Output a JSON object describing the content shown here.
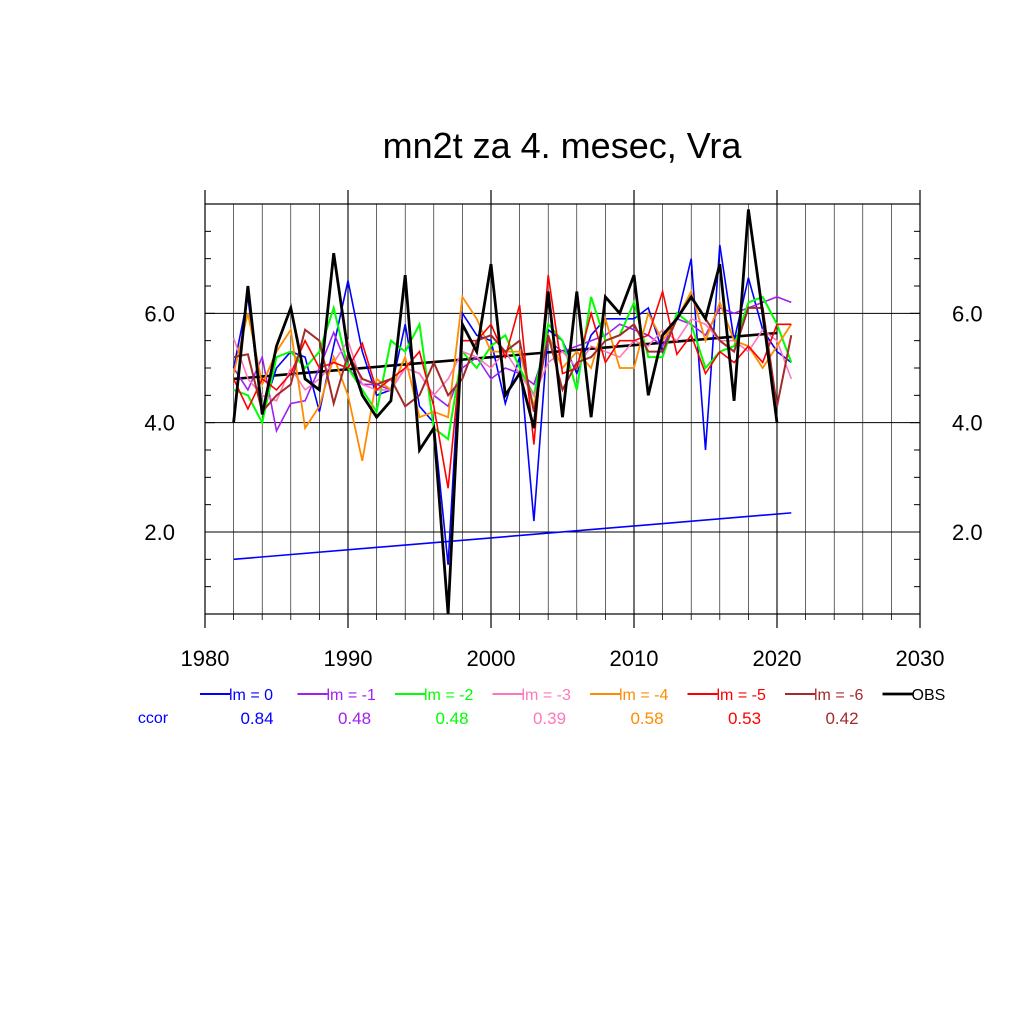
{
  "chart_data": {
    "type": "line",
    "title": "mn2t za 4. mesec, Vra",
    "xlim": [
      1980,
      2030
    ],
    "ylim": [
      0.5,
      8.0
    ],
    "x_ticks": [
      1980,
      1990,
      2000,
      2010,
      2020,
      2030
    ],
    "x_tick_labels": [
      "1980",
      "1990",
      "2000",
      "2010",
      "2020",
      "2030"
    ],
    "y_ticks": [
      2.0,
      4.0,
      6.0
    ],
    "y_tick_labels": [
      "2.0",
      "4.0",
      "6.0"
    ],
    "grid": true,
    "legend_position": "bottom",
    "ccor_label": "ccor",
    "years": [
      1982,
      1983,
      1984,
      1985,
      1986,
      1987,
      1988,
      1989,
      1990,
      1991,
      1992,
      1993,
      1994,
      1995,
      1996,
      1997,
      1998,
      1999,
      2000,
      2001,
      2002,
      2003,
      2004,
      2005,
      2006,
      2007,
      2008,
      2009,
      2010,
      2011,
      2012,
      2013,
      2014,
      2015,
      2016,
      2017,
      2018,
      2019,
      2020,
      2021
    ],
    "series": [
      {
        "name": "lm = 0",
        "color": "#0000ff",
        "width": 1.6,
        "ccor": "0.84",
        "values": [
          5.0,
          6.3,
          4.2,
          5.0,
          5.3,
          5.2,
          4.2,
          5.4,
          6.6,
          5.3,
          4.5,
          4.6,
          5.8,
          4.3,
          4.0,
          1.4,
          6.0,
          5.6,
          5.5,
          4.35,
          5.2,
          2.2,
          5.7,
          5.5,
          4.9,
          5.6,
          5.9,
          5.9,
          5.9,
          6.1,
          5.3,
          5.9,
          7.0,
          3.5,
          7.25,
          5.5,
          6.65,
          5.7,
          5.3,
          5.1
        ]
      },
      {
        "name": "lm = -1",
        "color": "#a020f0",
        "width": 1.6,
        "ccor": "0.48",
        "values": [
          5.0,
          4.6,
          5.2,
          3.85,
          4.35,
          4.4,
          5.0,
          5.65,
          5.0,
          4.7,
          4.7,
          4.6,
          5.0,
          4.9,
          4.5,
          4.3,
          5.0,
          5.2,
          4.8,
          5.0,
          4.9,
          4.7,
          5.5,
          5.3,
          5.4,
          5.5,
          5.6,
          5.8,
          5.7,
          5.6,
          5.4,
          5.9,
          5.8,
          5.6,
          6.1,
          6.0,
          6.1,
          6.2,
          6.3,
          6.2
        ]
      },
      {
        "name": "lm = -2",
        "color": "#00ff00",
        "width": 2.0,
        "ccor": "0.48",
        "values": [
          4.6,
          4.5,
          4.0,
          5.2,
          5.3,
          5.0,
          5.3,
          6.1,
          5.0,
          4.6,
          4.2,
          5.5,
          5.3,
          5.8,
          3.9,
          3.7,
          5.3,
          5.0,
          5.4,
          5.6,
          5.0,
          4.5,
          5.8,
          5.5,
          4.6,
          6.3,
          5.5,
          5.6,
          6.2,
          5.2,
          5.2,
          6.0,
          5.8,
          5.0,
          5.3,
          5.4,
          6.2,
          6.3,
          5.8,
          5.1
        ]
      },
      {
        "name": "lm = -3",
        "color": "#ff77bb",
        "width": 1.6,
        "ccor": "0.39",
        "values": [
          5.55,
          4.8,
          4.5,
          4.4,
          5.0,
          4.6,
          4.8,
          5.1,
          5.5,
          4.7,
          4.6,
          4.6,
          5.0,
          4.9,
          4.5,
          4.8,
          5.3,
          5.2,
          5.0,
          5.3,
          4.9,
          4.5,
          5.1,
          5.3,
          5.0,
          5.4,
          5.3,
          5.2,
          5.5,
          5.4,
          5.7,
          5.5,
          5.9,
          5.8,
          5.5,
          5.5,
          5.3,
          5.7,
          5.5,
          4.8
        ]
      },
      {
        "name": "lm = -4",
        "color": "#ff8c00",
        "width": 1.8,
        "ccor": "0.58",
        "values": [
          4.9,
          6.0,
          4.7,
          5.3,
          5.7,
          3.9,
          4.3,
          5.2,
          4.5,
          3.3,
          4.8,
          4.6,
          5.2,
          4.1,
          4.2,
          4.1,
          6.3,
          5.9,
          5.3,
          5.3,
          5.3,
          4.3,
          5.6,
          5.0,
          5.3,
          5.0,
          5.9,
          5.0,
          5.0,
          6.0,
          5.5,
          5.9,
          6.4,
          5.5,
          6.2,
          5.5,
          5.4,
          5.0,
          5.4,
          5.8
        ]
      },
      {
        "name": "lm = -5",
        "color": "#ff0000",
        "width": 1.6,
        "ccor": "0.53",
        "values": [
          4.8,
          4.25,
          4.8,
          4.6,
          4.9,
          5.5,
          5.0,
          5.1,
          5.0,
          5.45,
          4.6,
          4.8,
          5.0,
          5.3,
          4.3,
          2.8,
          5.5,
          5.5,
          5.8,
          5.2,
          6.15,
          3.6,
          6.7,
          4.9,
          5.0,
          6.0,
          5.1,
          5.5,
          5.5,
          5.6,
          6.4,
          5.25,
          5.6,
          4.9,
          5.3,
          5.1,
          5.4,
          5.1,
          5.8,
          5.8
        ]
      },
      {
        "name": "lm = -6",
        "color": "#a52a2a",
        "width": 2.0,
        "ccor": "0.42",
        "values": [
          5.2,
          5.25,
          4.2,
          4.5,
          4.7,
          5.7,
          5.5,
          4.35,
          5.25,
          4.8,
          4.7,
          4.8,
          4.3,
          4.5,
          5.1,
          4.5,
          4.8,
          5.5,
          5.6,
          5.3,
          5.5,
          4.2,
          5.6,
          4.6,
          5.1,
          5.2,
          5.5,
          5.6,
          5.8,
          5.3,
          5.3,
          5.9,
          6.3,
          5.9,
          5.5,
          5.3,
          6.1,
          6.1,
          4.3,
          5.6
        ]
      },
      {
        "name": "OBS",
        "color": "#000000",
        "width": 2.8,
        "ccor": "",
        "values": [
          4.0,
          6.5,
          4.15,
          5.4,
          6.1,
          4.8,
          4.6,
          7.1,
          5.3,
          4.5,
          4.1,
          4.4,
          6.7,
          3.5,
          3.9,
          0.5,
          5.8,
          5.3,
          6.9,
          4.5,
          4.9,
          3.9,
          6.4,
          4.1,
          6.4,
          4.1,
          6.3,
          6.0,
          6.7,
          4.5,
          5.6,
          5.9,
          6.3,
          5.9,
          6.9,
          4.4,
          7.9,
          6.0,
          4.0,
          null
        ]
      }
    ],
    "trendlines": [
      {
        "of": "OBS",
        "color": "#000000",
        "width": 2.6,
        "x": [
          1982,
          2020
        ],
        "y": [
          4.8,
          5.64
        ]
      },
      {
        "of": "lm = 0",
        "color": "#0000ff",
        "width": 1.6,
        "x": [
          1982,
          2021
        ],
        "y": [
          1.5,
          2.35
        ]
      }
    ]
  }
}
